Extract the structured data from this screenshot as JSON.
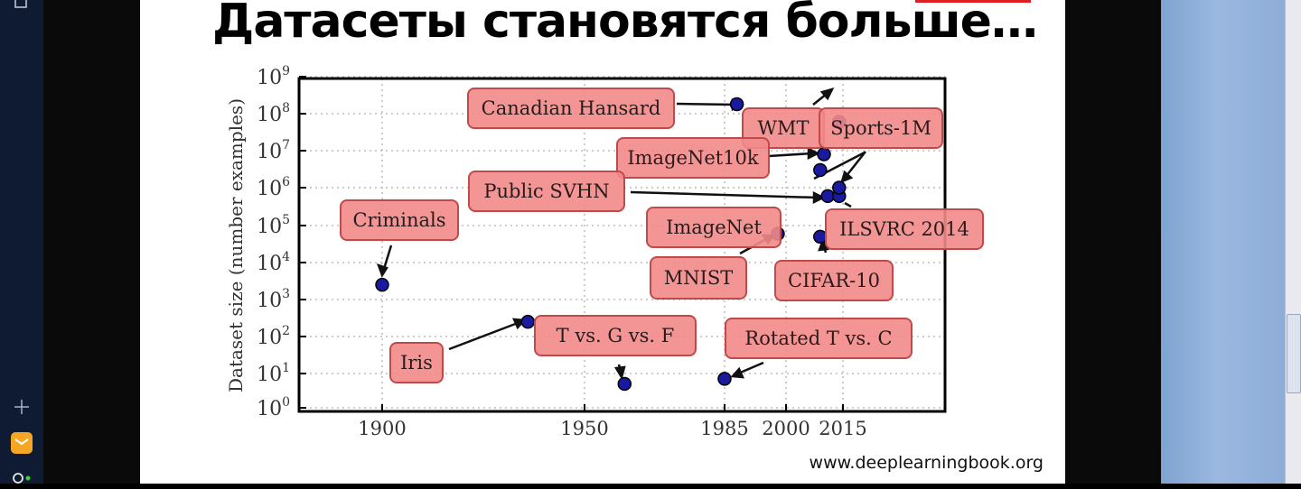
{
  "slide": {
    "title": "Датасеты становятся больше…",
    "source": "www.deeplearningbook.org"
  },
  "colors": {
    "label_fill": "#f28a8a",
    "label_stroke": "#c04a4a",
    "point_fill": "#1a1aa0",
    "title_accent": "#e02020"
  },
  "icons": [
    "plus-icon",
    "mail-app-icon",
    "circle-app-icon",
    "scroll-grip-icon"
  ],
  "chart_data": {
    "type": "scatter",
    "title": "",
    "xlabel": "",
    "ylabel": "Dataset size (number examples)",
    "y_scale": "log",
    "x_ticks": [
      1900,
      1950,
      1985,
      2000,
      2015
    ],
    "y_ticks": [
      {
        "base": "10",
        "exp": "0"
      },
      {
        "base": "10",
        "exp": "1"
      },
      {
        "base": "10",
        "exp": "2"
      },
      {
        "base": "10",
        "exp": "3"
      },
      {
        "base": "10",
        "exp": "4"
      },
      {
        "base": "10",
        "exp": "5"
      },
      {
        "base": "10",
        "exp": "6"
      },
      {
        "base": "10",
        "exp": "7"
      },
      {
        "base": "10",
        "exp": "8"
      },
      {
        "base": "10",
        "exp": "9"
      }
    ],
    "grid": true,
    "points": [
      {
        "year": 1900,
        "size": 2500
      },
      {
        "year": 1936,
        "size": 250
      },
      {
        "year": 1960,
        "size": 5
      },
      {
        "year": 1985,
        "size": 7
      },
      {
        "year": 1988,
        "size": 180000000
      },
      {
        "year": 1998,
        "size": 60000
      },
      {
        "year": 2009,
        "size": 50000
      },
      {
        "year": 2009,
        "size": 3000000
      },
      {
        "year": 2010,
        "size": 8000000
      },
      {
        "year": 2011,
        "size": 600000
      },
      {
        "year": 2014,
        "size": 600000
      },
      {
        "year": 2014,
        "size": 1000000
      },
      {
        "year": 2014,
        "size": 60000000
      }
    ],
    "annotations": [
      "Canadian Hansard",
      "WMT",
      "Sports-1M",
      "ImageNet10k",
      "Public SVHN",
      "Criminals",
      "ImageNet",
      "ILSVRC 2014",
      "MNIST",
      "CIFAR-10",
      "T vs. G vs. F",
      "Rotated T vs. C",
      "Iris"
    ],
    "xlim": [
      1875,
      2035
    ],
    "ylim_exp": [
      0,
      9
    ]
  }
}
